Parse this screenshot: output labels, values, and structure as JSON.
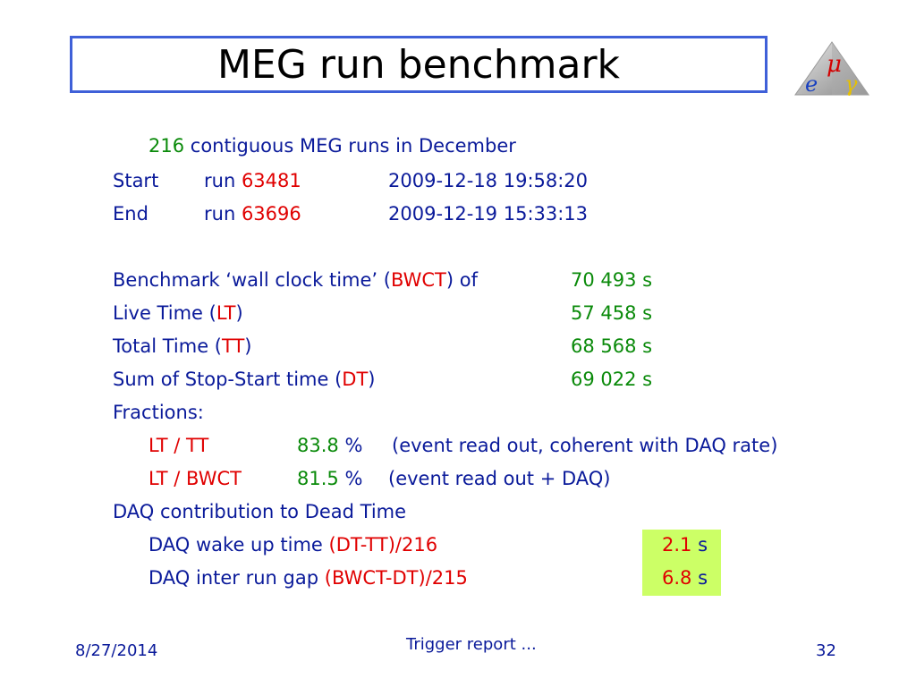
{
  "slide": {
    "title": "MEG run benchmark",
    "logo_letters": {
      "mu": "μ",
      "e": "e",
      "gamma": "γ"
    }
  },
  "intro": {
    "count": "216",
    "text": " contiguous MEG runs in December"
  },
  "start": {
    "label": "Start",
    "run_prefix": "run ",
    "run": "63481",
    "datetime": "2009-12-18 19:58:20"
  },
  "end": {
    "label": "End",
    "run_prefix": "run ",
    "run": "63696",
    "datetime": "2009-12-19 15:33:13"
  },
  "bwct": {
    "prefix": "Benchmark ‘wall clock time’ (",
    "abbr": "BWCT",
    "suffix": ") of",
    "value": "70 493 s"
  },
  "lt": {
    "prefix": "Live Time (",
    "abbr": "LT",
    "suffix": ")",
    "value": "57 458 s"
  },
  "tt": {
    "prefix": "Total Time (",
    "abbr": "TT",
    "suffix": ")",
    "value": "68 568 s"
  },
  "dt": {
    "prefix": "Sum of Stop-Start time (",
    "abbr": "DT",
    "suffix": ")",
    "value": "69 022 s"
  },
  "fractions": {
    "heading": "Fractions:",
    "rows": [
      {
        "ratio": "LT / TT",
        "value": "83.8",
        "unit": "%",
        "note": "(event read out, coherent with DAQ rate)"
      },
      {
        "ratio": "LT / BWCT",
        "value": "81.5",
        "unit": "%",
        "note": "(event read out + DAQ)"
      }
    ]
  },
  "daq": {
    "heading": "DAQ contribution to Dead Time",
    "rows": [
      {
        "label": "DAQ wake up time ",
        "formula": "(DT-TT)/216",
        "value": "2.1",
        "unit": "s"
      },
      {
        "label": "DAQ inter run gap ",
        "formula": "(BWCT-DT)/215",
        "value": "6.8",
        "unit": "s"
      }
    ]
  },
  "footer": {
    "date": "8/27/2014",
    "center": "Trigger report ...",
    "page": "32"
  },
  "colors": {
    "text": "#0a1a9a",
    "red": "#e00000",
    "green": "#0a8a0a",
    "highlight": "#ccff66",
    "title_border": "#3f60d8"
  }
}
